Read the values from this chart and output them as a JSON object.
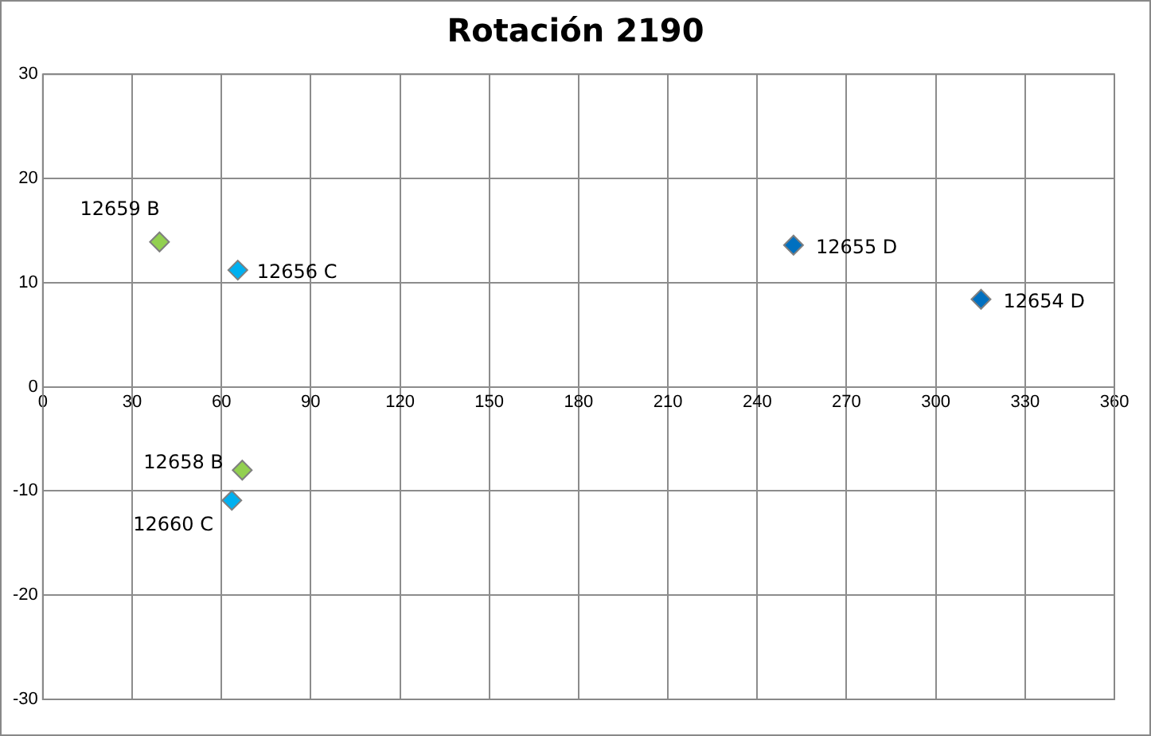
{
  "chart_data": {
    "type": "scatter",
    "title": "Rotación 2190",
    "marker": "diamond",
    "grid": true,
    "legend": false,
    "xlim": [
      0,
      360
    ],
    "xticks": [
      0,
      30,
      60,
      90,
      120,
      150,
      180,
      210,
      240,
      270,
      300,
      330,
      360
    ],
    "ylim": [
      -30,
      30
    ],
    "yticks": [
      -30,
      -20,
      -10,
      0,
      10,
      20,
      30
    ],
    "series": [
      {
        "name": "12659 B",
        "color": "#92d050",
        "x": [
          39.2
        ],
        "values": [
          13.9
        ]
      },
      {
        "name": "12656 C",
        "color": "#00b0f0",
        "x": [
          65.5
        ],
        "values": [
          11.2
        ]
      },
      {
        "name": "12655 D",
        "color": "#0070c0",
        "x": [
          252.2
        ],
        "values": [
          13.6
        ]
      },
      {
        "name": "12654 D",
        "color": "#0070c0",
        "x": [
          315.2
        ],
        "values": [
          8.4
        ]
      },
      {
        "name": "12658 B",
        "color": "#92d050",
        "x": [
          67.0
        ],
        "values": [
          -8.0
        ]
      },
      {
        "name": "12660 C",
        "color": "#00b0f0",
        "x": [
          63.5
        ],
        "values": [
          -10.9
        ]
      }
    ]
  }
}
